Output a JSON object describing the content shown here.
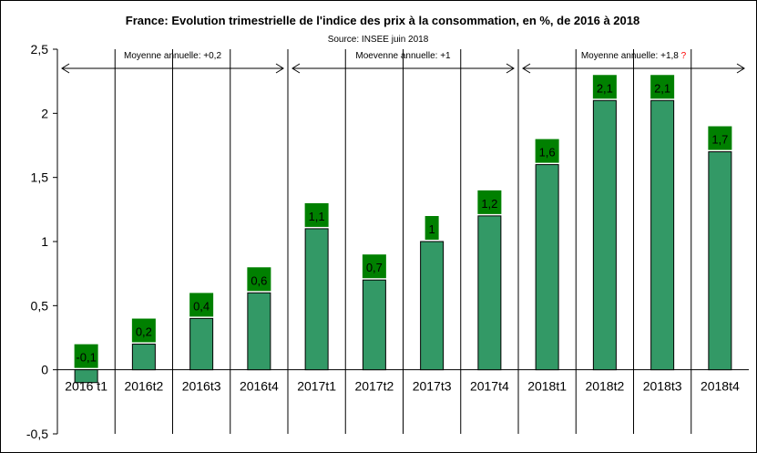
{
  "chart_data": {
    "type": "bar",
    "title": "France: Evolution trimestrielle de l'indice des prix à la consommation, en %, de 2016 à 2018",
    "subtitle": "Source: INSEE juin 2018",
    "categories": [
      "2016 t1",
      "2016t2",
      "2016t3",
      "2016t4",
      "2017t1",
      "2017t2",
      "2017t3",
      "2017t4",
      "2018t1",
      "2018t2",
      "2018t3",
      "2018t4"
    ],
    "values": [
      -0.1,
      0.2,
      0.4,
      0.6,
      1.1,
      0.7,
      1,
      1.2,
      1.6,
      2.1,
      2.1,
      1.7
    ],
    "data_labels": [
      "-0,1",
      "0,2",
      "0,4",
      "0,6",
      "1,1",
      "0,7",
      "1",
      "1,2",
      "1,6",
      "2,1",
      "2,1",
      "1,7"
    ],
    "ylim": [
      -0.5,
      2.5
    ],
    "yticks": [
      2.5,
      2,
      1.5,
      1,
      0.5,
      0,
      -0.5
    ],
    "ytick_labels": [
      "2,5",
      "2",
      "1,5",
      "1",
      "0,5",
      "0",
      "-0,5"
    ],
    "grid": "vertical separators",
    "bar_color": "#339966",
    "label_bg_color": "#008000",
    "annotations": [
      {
        "text": "Moyenne annuelle: +0,2",
        "span": [
          "2016 t1",
          "2016t4"
        ]
      },
      {
        "text": "Moevenne annuelle: +1",
        "span": [
          "2017t1",
          "2017t4"
        ]
      },
      {
        "text": "Moyenne annuelle: +1,8",
        "marker": "?",
        "marker_color": "#ff0000",
        "span": [
          "2018t1",
          "2018t4"
        ]
      }
    ]
  }
}
